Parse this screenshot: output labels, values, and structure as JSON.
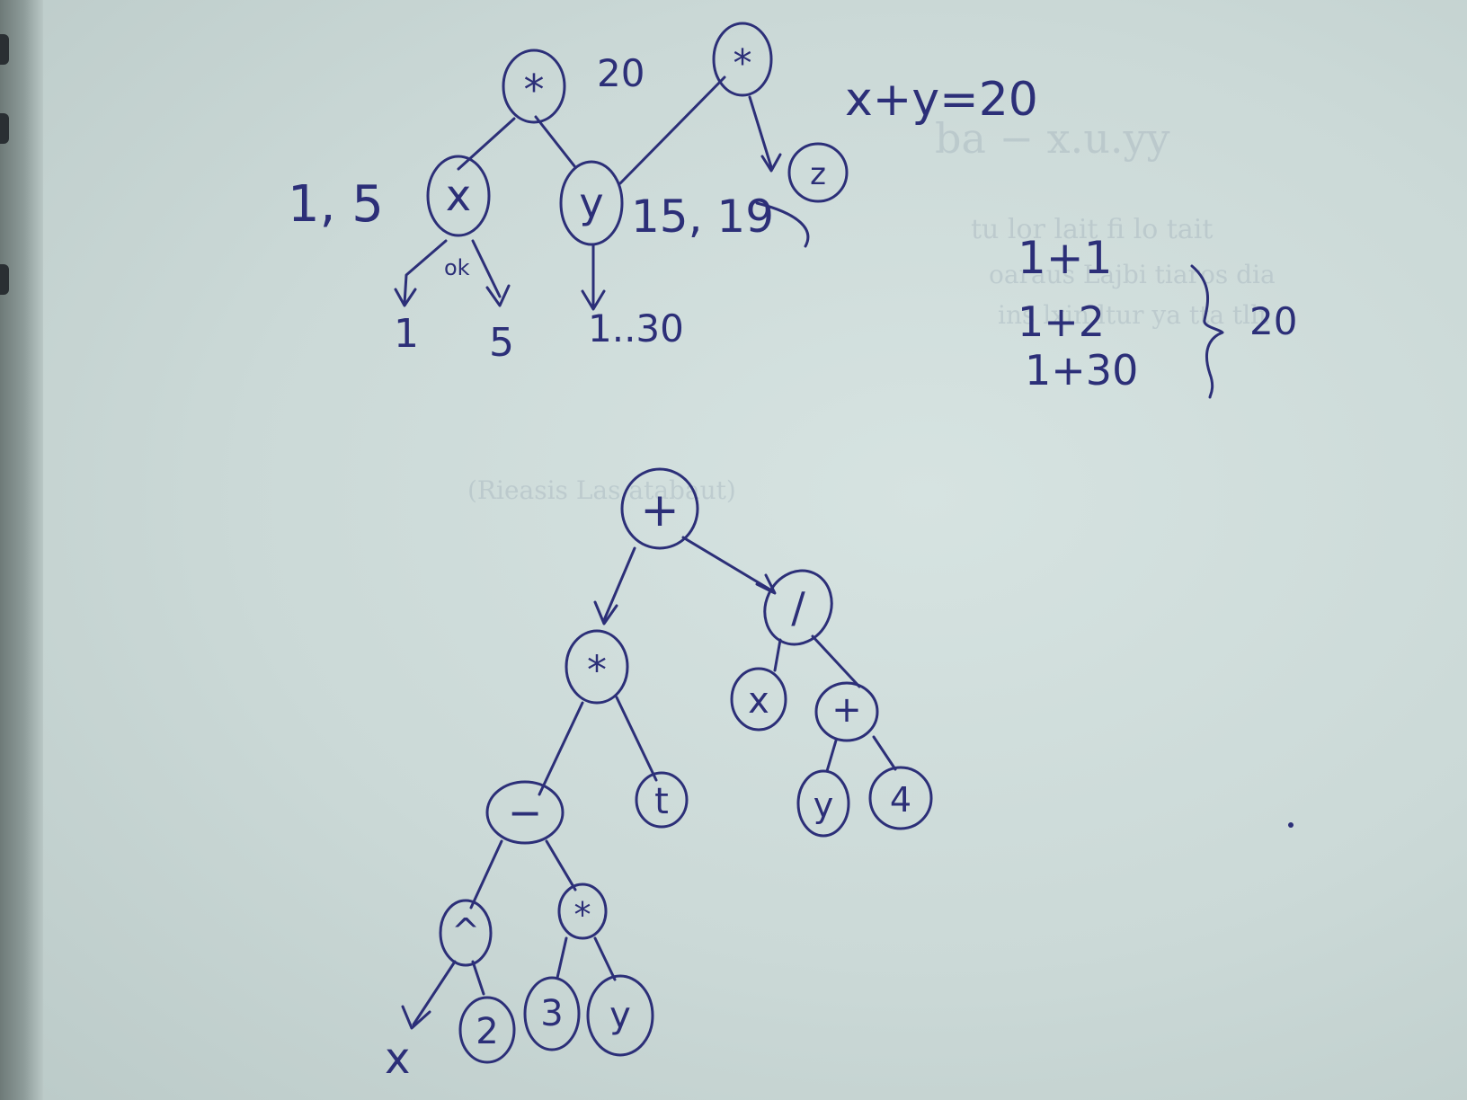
{
  "tree_top": {
    "nodes": [
      {
        "id": "mul-root",
        "label": "*"
      },
      {
        "id": "x",
        "label": "x"
      },
      {
        "id": "y",
        "label": "y"
      },
      {
        "id": "mul-right",
        "label": "*"
      },
      {
        "id": "z",
        "label": "z"
      }
    ],
    "annotations": {
      "root_value": "20",
      "x_values": "1, 5",
      "y_values": "15, 19",
      "ok": "ok",
      "x_leaf_1": "1",
      "x_leaf_2": "5",
      "y_range": "1..30"
    }
  },
  "equation": "x+y=20",
  "sums": {
    "lines": [
      "1+1",
      "1+2",
      "1+30"
    ],
    "total": "20"
  },
  "tree_bottom": {
    "nodes": [
      {
        "id": "plus-root",
        "label": "+"
      },
      {
        "id": "mul",
        "label": "*"
      },
      {
        "id": "div",
        "label": "/"
      },
      {
        "id": "minus",
        "label": "−"
      },
      {
        "id": "t",
        "label": "t"
      },
      {
        "id": "x-div",
        "label": "x"
      },
      {
        "id": "plus-inner",
        "label": "+"
      },
      {
        "id": "y-plus",
        "label": "y"
      },
      {
        "id": "four",
        "label": "4"
      },
      {
        "id": "pow",
        "label": "^"
      },
      {
        "id": "mul-inner",
        "label": "*"
      },
      {
        "id": "two",
        "label": "2"
      },
      {
        "id": "three",
        "label": "3"
      },
      {
        "id": "y-mul",
        "label": "y"
      }
    ],
    "leaf_x": "x"
  }
}
